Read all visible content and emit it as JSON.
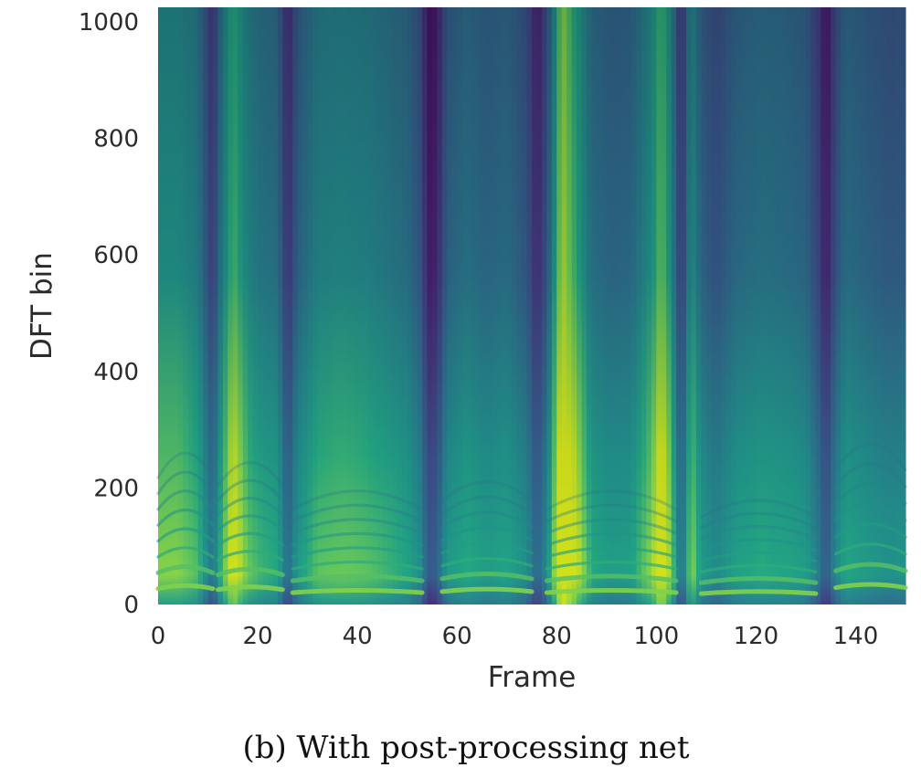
{
  "chart_data": {
    "type": "heatmap",
    "title": "",
    "caption": "(b) With post-processing net",
    "xlabel": "Frame",
    "ylabel": "DFT bin",
    "xlim": [
      0,
      150
    ],
    "ylim": [
      0,
      1025
    ],
    "xticks": [
      0,
      20,
      40,
      60,
      80,
      100,
      120,
      140
    ],
    "yticks": [
      0,
      200,
      400,
      600,
      800,
      1000
    ],
    "colormap": "viridis",
    "grid": false,
    "colorbar": false,
    "colors": {
      "low": "#2d1a5e",
      "mid": "#21918c",
      "high": "#d2e21b"
    },
    "column_energy": [
      [
        0,
        0.6
      ],
      [
        4,
        0.6
      ],
      [
        8,
        0.52
      ],
      [
        11,
        0.18
      ],
      [
        12,
        0.4
      ],
      [
        15,
        0.78
      ],
      [
        18,
        0.56
      ],
      [
        21,
        0.48
      ],
      [
        24,
        0.45
      ],
      [
        26,
        0.14
      ],
      [
        28,
        0.38
      ],
      [
        32,
        0.54
      ],
      [
        37,
        0.56
      ],
      [
        42,
        0.54
      ],
      [
        47,
        0.48
      ],
      [
        50,
        0.44
      ],
      [
        53,
        0.3
      ],
      [
        54,
        0.06
      ],
      [
        56,
        0.1
      ],
      [
        58,
        0.38
      ],
      [
        62,
        0.46
      ],
      [
        66,
        0.4
      ],
      [
        70,
        0.44
      ],
      [
        74,
        0.32
      ],
      [
        76,
        0.12
      ],
      [
        78,
        0.3
      ],
      [
        81,
        0.92
      ],
      [
        84,
        0.72
      ],
      [
        87,
        0.46
      ],
      [
        91,
        0.4
      ],
      [
        95,
        0.42
      ],
      [
        99,
        0.62
      ],
      [
        101,
        0.82
      ],
      [
        103,
        0.6
      ],
      [
        105,
        0.16
      ],
      [
        107,
        0.62
      ],
      [
        109,
        0.4
      ],
      [
        112,
        0.3
      ],
      [
        116,
        0.42
      ],
      [
        121,
        0.46
      ],
      [
        126,
        0.44
      ],
      [
        130,
        0.4
      ],
      [
        133,
        0.2
      ],
      [
        134,
        0.06
      ],
      [
        136,
        0.3
      ],
      [
        138,
        0.44
      ],
      [
        143,
        0.38
      ],
      [
        147,
        0.34
      ],
      [
        150,
        0.36
      ]
    ],
    "harmonic_segments": [
      [
        0,
        11,
        32
      ],
      [
        12,
        25,
        30
      ],
      [
        27,
        53,
        24
      ],
      [
        57,
        75,
        26
      ],
      [
        78,
        104,
        24
      ],
      [
        109,
        132,
        22
      ],
      [
        136,
        150,
        34
      ]
    ]
  }
}
